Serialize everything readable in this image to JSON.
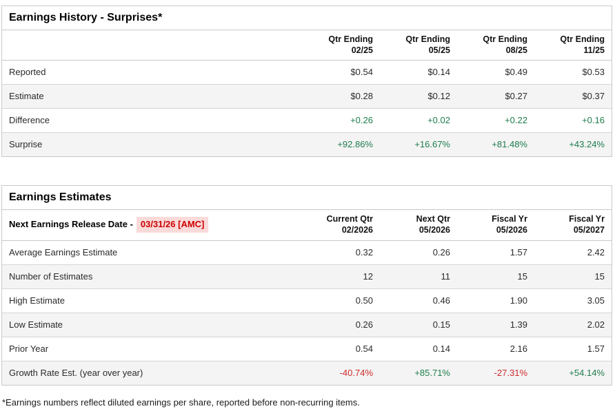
{
  "footnote": "*Earnings numbers reflect diluted earnings per share, reported before non-recurring items.",
  "colors": {
    "positive": "#1d7d4c",
    "negative": "#cc2a2a",
    "release_text": "#cc0000",
    "release_bg": "#fbdada"
  },
  "earnings_history": {
    "title": "Earnings History - Surprises*",
    "columns": [
      {
        "label": "Qtr Ending",
        "sub": "02/25"
      },
      {
        "label": "Qtr Ending",
        "sub": "05/25"
      },
      {
        "label": "Qtr Ending",
        "sub": "08/25"
      },
      {
        "label": "Qtr Ending",
        "sub": "11/25"
      }
    ],
    "rows": [
      {
        "label": "Reported",
        "values": [
          "$0.54",
          "$0.14",
          "$0.49",
          "$0.53"
        ],
        "tones": [
          "neutral",
          "neutral",
          "neutral",
          "neutral"
        ]
      },
      {
        "label": "Estimate",
        "values": [
          "$0.28",
          "$0.12",
          "$0.27",
          "$0.37"
        ],
        "tones": [
          "neutral",
          "neutral",
          "neutral",
          "neutral"
        ]
      },
      {
        "label": "Difference",
        "values": [
          "+0.26",
          "+0.02",
          "+0.22",
          "+0.16"
        ],
        "tones": [
          "positive",
          "positive",
          "positive",
          "positive"
        ]
      },
      {
        "label": "Surprise",
        "values": [
          "+92.86%",
          "+16.67%",
          "+81.48%",
          "+43.24%"
        ],
        "tones": [
          "positive",
          "positive",
          "positive",
          "positive"
        ]
      }
    ]
  },
  "earnings_estimates": {
    "title": "Earnings Estimates",
    "release_label": "Next Earnings Release Date -",
    "release_date": "03/31/26 [AMC]",
    "columns": [
      {
        "label": "Current Qtr",
        "sub": "02/2026"
      },
      {
        "label": "Next Qtr",
        "sub": "05/2026"
      },
      {
        "label": "Fiscal Yr",
        "sub": "05/2026"
      },
      {
        "label": "Fiscal Yr",
        "sub": "05/2027"
      }
    ],
    "rows": [
      {
        "label": "Average Earnings Estimate",
        "values": [
          "0.32",
          "0.26",
          "1.57",
          "2.42"
        ],
        "tones": [
          "neutral",
          "neutral",
          "neutral",
          "neutral"
        ]
      },
      {
        "label": "Number of Estimates",
        "values": [
          "12",
          "11",
          "15",
          "15"
        ],
        "tones": [
          "neutral",
          "neutral",
          "neutral",
          "neutral"
        ]
      },
      {
        "label": "High Estimate",
        "values": [
          "0.50",
          "0.46",
          "1.90",
          "3.05"
        ],
        "tones": [
          "neutral",
          "neutral",
          "neutral",
          "neutral"
        ]
      },
      {
        "label": "Low Estimate",
        "values": [
          "0.26",
          "0.15",
          "1.39",
          "2.02"
        ],
        "tones": [
          "neutral",
          "neutral",
          "neutral",
          "neutral"
        ]
      },
      {
        "label": "Prior Year",
        "values": [
          "0.54",
          "0.14",
          "2.16",
          "1.57"
        ],
        "tones": [
          "neutral",
          "neutral",
          "neutral",
          "neutral"
        ]
      },
      {
        "label": "Growth Rate Est. (year over year)",
        "values": [
          "-40.74%",
          "+85.71%",
          "-27.31%",
          "+54.14%"
        ],
        "tones": [
          "negative",
          "positive",
          "negative",
          "positive"
        ]
      }
    ]
  }
}
